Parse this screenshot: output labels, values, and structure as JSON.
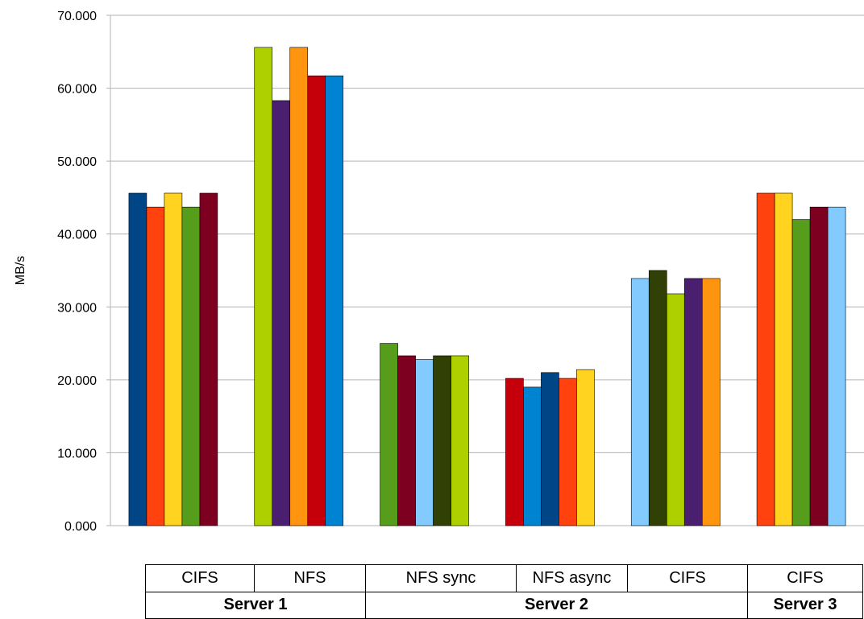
{
  "chart_data": {
    "type": "bar",
    "ylabel": "MB/s",
    "ylim": [
      0,
      70000
    ],
    "yticks": [
      "0.000",
      "10.000",
      "20.000",
      "30.000",
      "40.000",
      "50.000",
      "60.000",
      "70.000"
    ],
    "grid": true,
    "categories": [
      "CIFS",
      "NFS",
      "NFS sync",
      "NFS async",
      "CIFS",
      "CIFS"
    ],
    "groups": [
      "Server 1",
      "Server 2",
      "Server 3"
    ],
    "groups_span": [
      2,
      3,
      1
    ],
    "bar_groups": [
      {
        "category": "CIFS",
        "group": "Server 1",
        "values": [
          45600,
          43700,
          45600,
          43700,
          45600
        ],
        "colors": [
          "#004586",
          "#ff420e",
          "#ffd320",
          "#579d1c",
          "#7e0021"
        ]
      },
      {
        "category": "NFS",
        "group": "Server 1",
        "values": [
          65600,
          58300,
          65600,
          61700,
          61700
        ],
        "colors": [
          "#aecf00",
          "#4b1f6f",
          "#ff950e",
          "#c5000b",
          "#0084d1"
        ]
      },
      {
        "category": "NFS sync",
        "group": "Server 2",
        "values": [
          25000,
          23300,
          22800,
          23300,
          23300
        ],
        "colors": [
          "#579d1c",
          "#7e0021",
          "#83caff",
          "#314004",
          "#aecf00"
        ]
      },
      {
        "category": "NFS async",
        "group": "Server 2",
        "values": [
          20200,
          19000,
          21000,
          20200,
          21400
        ],
        "colors": [
          "#c5000b",
          "#0084d1",
          "#004586",
          "#ff420e",
          "#ffd320"
        ]
      },
      {
        "category": "CIFS",
        "group": "Server 2",
        "values": [
          33900,
          35000,
          31800,
          33900,
          33900
        ],
        "colors": [
          "#83caff",
          "#314004",
          "#aecf00",
          "#4b1f6f",
          "#ff950e"
        ]
      },
      {
        "category": "CIFS",
        "group": "Server 3",
        "values": [
          45600,
          45600,
          42000,
          43700,
          43700
        ],
        "colors": [
          "#ff420e",
          "#ffd320",
          "#579d1c",
          "#7e0021",
          "#83caff"
        ]
      }
    ]
  }
}
